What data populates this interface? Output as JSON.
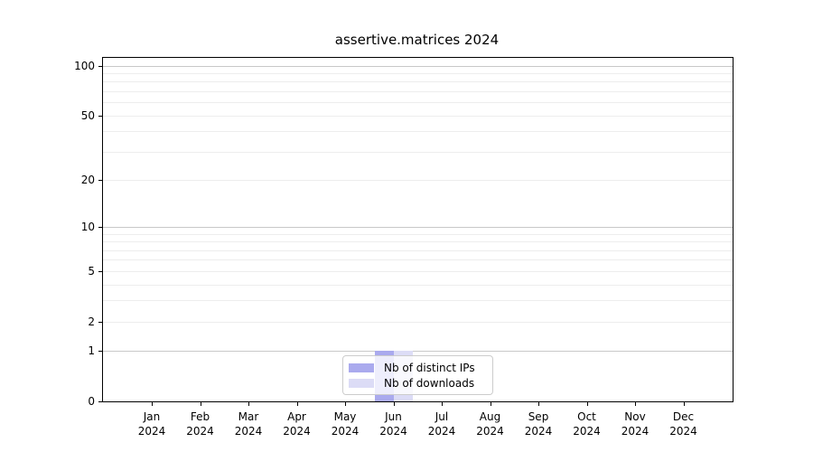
{
  "figure": {
    "title": "assertive.matrices 2024"
  },
  "legend": {
    "items": [
      {
        "label": "Nb of distinct IPs",
        "color": "#aaaaee"
      },
      {
        "label": "Nb of downloads",
        "color": "#dcdcf6"
      }
    ]
  },
  "chart_data": {
    "type": "bar",
    "title": "assertive.matrices 2024",
    "categories": [
      "Jan",
      "Feb",
      "Mar",
      "Apr",
      "May",
      "Jun",
      "Jul",
      "Aug",
      "Sep",
      "Oct",
      "Nov",
      "Dec"
    ],
    "year_label": "2024",
    "series": [
      {
        "name": "Nb of distinct IPs",
        "color": "#aaaaee",
        "values": [
          0,
          0,
          0,
          0,
          0,
          1,
          0,
          0,
          0,
          0,
          0,
          0
        ]
      },
      {
        "name": "Nb of downloads",
        "color": "#dcdcf6",
        "values": [
          0,
          0,
          0,
          0,
          0,
          1,
          0,
          0,
          0,
          0,
          0,
          0
        ]
      }
    ],
    "yscale": "log1p",
    "ylim": [
      0,
      100
    ],
    "yticks": [
      0,
      1,
      2,
      5,
      10,
      20,
      50,
      100
    ],
    "gridlines": {
      "major": [
        1,
        10,
        100
      ],
      "minor": [
        2,
        3,
        4,
        5,
        6,
        7,
        8,
        9,
        20,
        30,
        40,
        50,
        60,
        70,
        80,
        90
      ],
      "color_major": "#c8c8c8",
      "color_minor": "#ededed"
    },
    "legend_position": "bottom-center",
    "xlabel": "",
    "ylabel": ""
  }
}
